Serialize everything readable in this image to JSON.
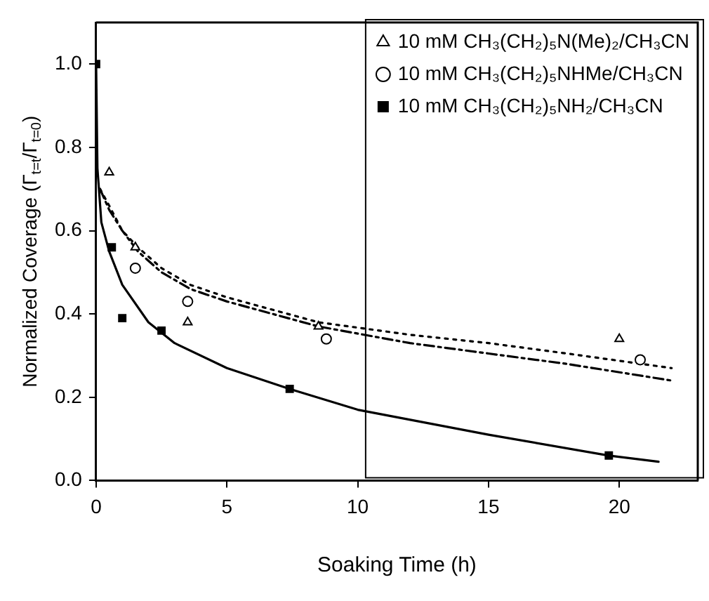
{
  "chart_data": {
    "type": "scatter",
    "xlabel": "Soaking Time (h)",
    "ylabel": "Normalized Coverage (Γ$_{t=t}$/Γ$_{t=0}$)",
    "xlim": [
      0,
      23
    ],
    "ylim": [
      0,
      1.1
    ],
    "xticks": [
      0,
      5,
      10,
      15,
      20
    ],
    "yticks": [
      {
        "value": 0,
        "label": "0.0"
      },
      {
        "value": 0.2,
        "label": "0.2"
      },
      {
        "value": 0.4,
        "label": "0.4"
      },
      {
        "value": 0.6,
        "label": "0.6"
      },
      {
        "value": 0.8,
        "label": "0.8"
      },
      {
        "value": 1,
        "label": "1.0"
      }
    ],
    "grid": false,
    "legend": "top right",
    "series": [
      {
        "name": "10 mM CH₃(CH₂)₅N(Me)₂/CH₃CN",
        "marker": "triangle",
        "color": "#000000",
        "x": [
          0.5,
          1.5,
          3.5,
          8.5,
          20
        ],
        "values": [
          0.74,
          0.56,
          0.38,
          0.37,
          0.34
        ]
      },
      {
        "name": "10 mM CH₃(CH₂)₅NHMe/CH₃CN",
        "marker": "circle",
        "color": "#000000",
        "x": [
          1.5,
          3.5,
          8.8,
          20.8
        ],
        "values": [
          0.51,
          0.43,
          0.34,
          0.29
        ]
      },
      {
        "name": "10 mM CH₃(CH₂)₅NH₂/CH₃CN",
        "marker": "square",
        "color": "#000000",
        "x": [
          0,
          0.6,
          1.0,
          2.5,
          7.4,
          19.6
        ],
        "values": [
          1.0,
          0.56,
          0.39,
          0.36,
          0.22,
          0.06
        ]
      },
      {
        "type": "line",
        "line_style": "dotted",
        "marker": "none",
        "color": "#000000",
        "x": [
          0.15,
          0.5,
          1,
          1.6,
          2.5,
          3.6,
          5,
          8.5,
          12,
          15,
          18,
          22
        ],
        "values": [
          0.7,
          0.66,
          0.6,
          0.56,
          0.51,
          0.47,
          0.44,
          0.38,
          0.35,
          0.33,
          0.305,
          0.27
        ]
      },
      {
        "type": "line",
        "line_style": "dashdot",
        "marker": "none",
        "color": "#000000",
        "x": [
          0.15,
          0.5,
          1,
          1.6,
          2.5,
          3.6,
          5,
          8.5,
          12,
          15,
          18,
          22
        ],
        "values": [
          0.7,
          0.65,
          0.6,
          0.55,
          0.5,
          0.46,
          0.43,
          0.37,
          0.33,
          0.305,
          0.28,
          0.24
        ]
      },
      {
        "type": "line",
        "line_style": "solid",
        "marker": "none",
        "color": "#000000",
        "x": [
          0,
          0.05,
          0.2,
          0.5,
          1,
          2,
          3,
          5,
          7.4,
          10,
          15,
          19.6,
          21.5
        ],
        "values": [
          1.0,
          0.75,
          0.62,
          0.55,
          0.47,
          0.38,
          0.33,
          0.27,
          0.22,
          0.17,
          0.11,
          0.06,
          0.045
        ]
      }
    ]
  }
}
